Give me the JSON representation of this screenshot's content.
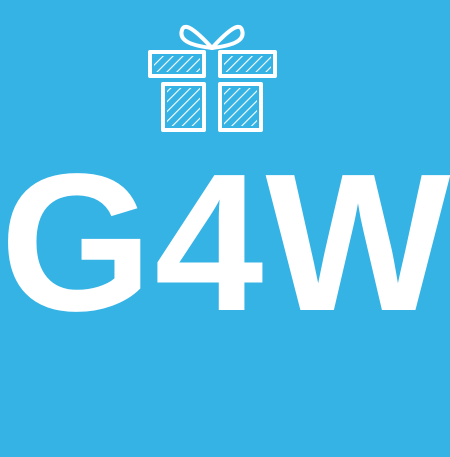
{
  "logo": {
    "text": "G4W",
    "icon": "gift-box-icon"
  },
  "colors": {
    "background": "#35b3e5",
    "foreground": "#ffffff"
  }
}
